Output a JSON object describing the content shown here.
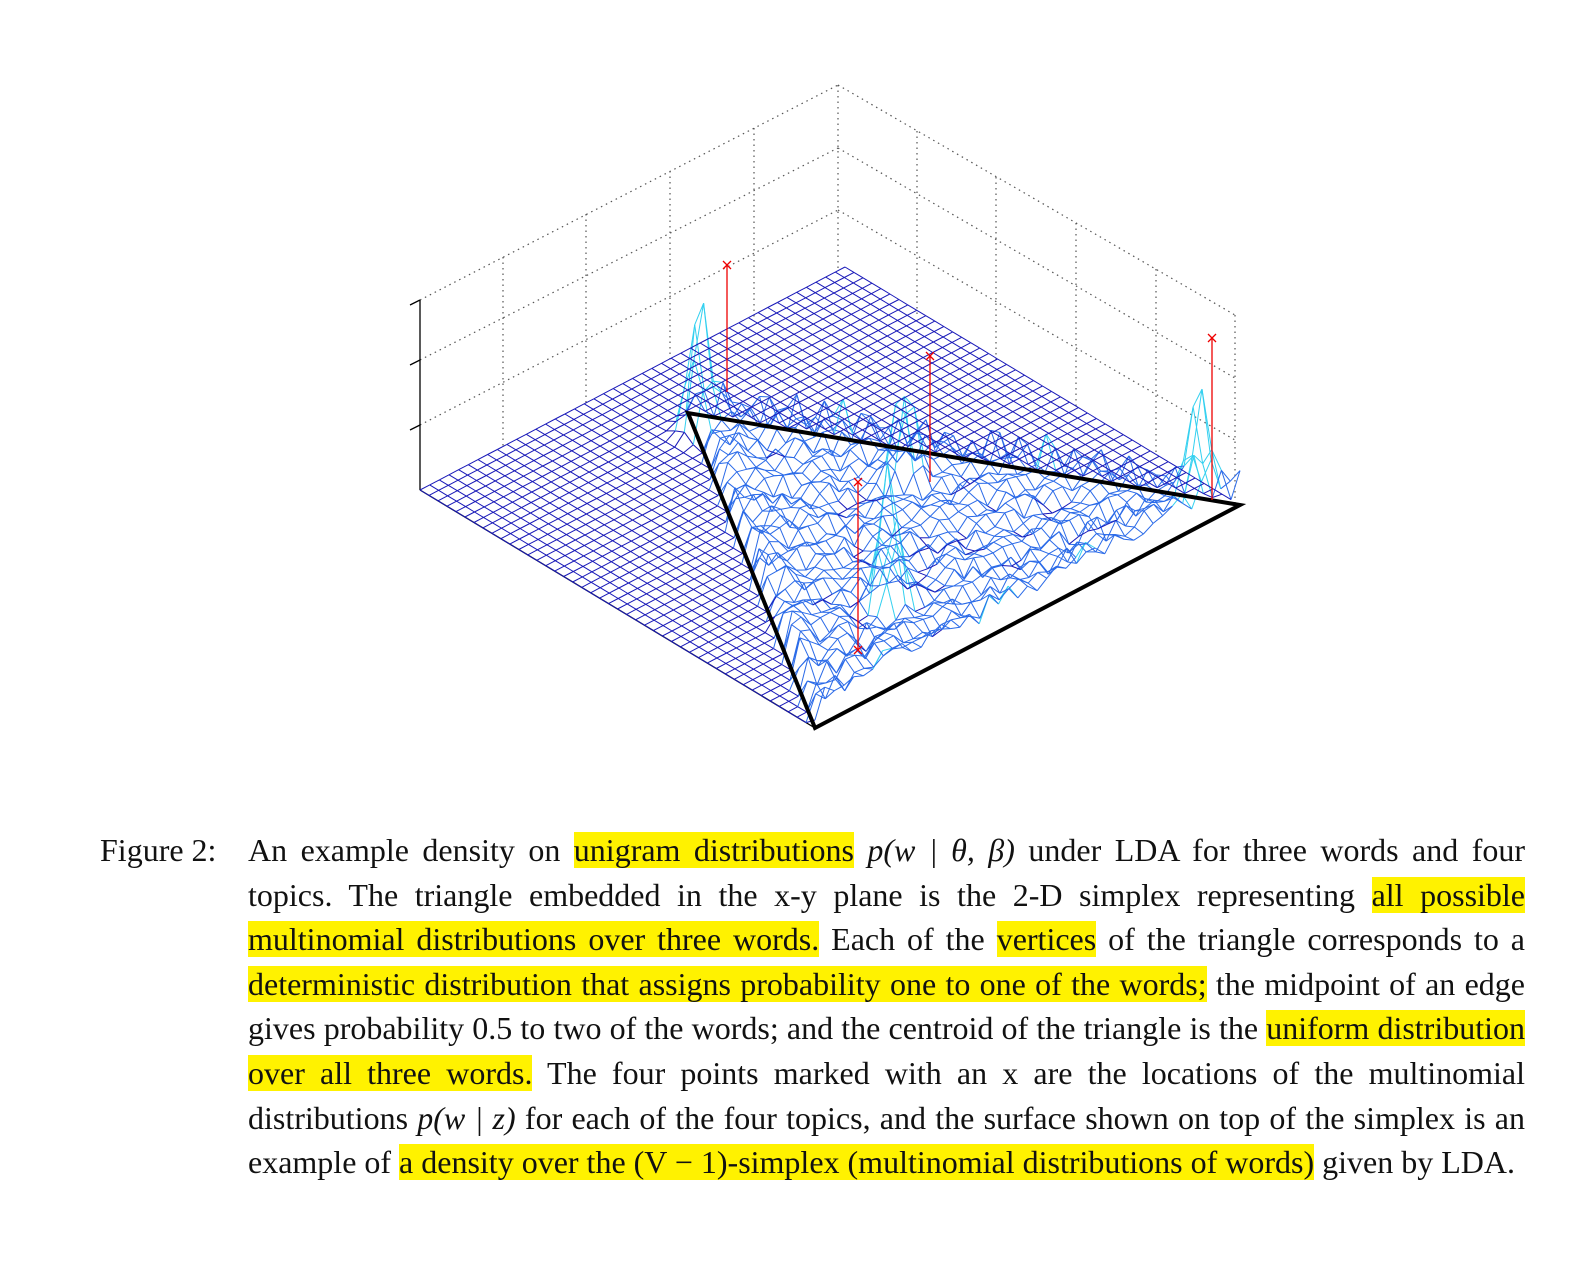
{
  "caption": {
    "label": "Figure 2:",
    "segments": [
      {
        "text": "An example density on "
      },
      {
        "text": "unigram distributions",
        "style": "highlight"
      },
      {
        "text": " "
      },
      {
        "text": "p(w | θ, β)",
        "style": "math"
      },
      {
        "text": " under LDA for three words and four topics. The triangle embedded in the x-y plane is the 2-D simplex representing "
      },
      {
        "text": "all possible multinomial distributions over three words.",
        "style": "highlight"
      },
      {
        "text": " Each of the "
      },
      {
        "text": "vertices",
        "style": "highlight"
      },
      {
        "text": " of the triangle corresponds to a "
      },
      {
        "text": "deterministic distribution that assigns probability one to one of the words;",
        "style": "highlight"
      },
      {
        "text": " the midpoint of an edge gives probability 0.5 to two of the words; and the centroid of the triangle is the "
      },
      {
        "text": "uniform distribution over all three words.",
        "style": "highlight"
      },
      {
        "text": " The four points marked with an x are the locations of the multinomial distributions "
      },
      {
        "text": "p(w | z)",
        "style": "math"
      },
      {
        "text": " for each of the four topics, and the surface shown on top of the simplex is an example of "
      },
      {
        "text": "a density over the (V − 1)-simplex (multinomial distributions of words)",
        "style": "highlight"
      },
      {
        "text": " given by LDA."
      }
    ]
  }
}
